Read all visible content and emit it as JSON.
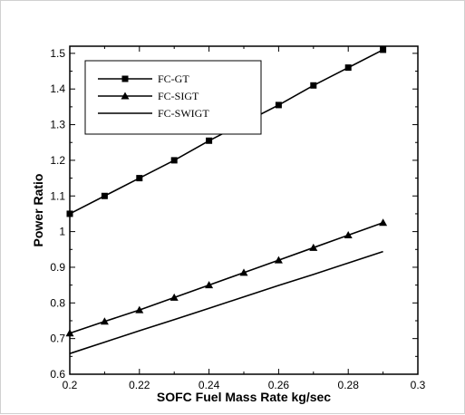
{
  "chart_data": {
    "type": "line",
    "xlabel": "SOFC Fuel Mass Rate kg/sec",
    "ylabel": "Power Ratio",
    "xlim": [
      0.2,
      0.3
    ],
    "ylim": [
      0.6,
      1.52
    ],
    "x_ticks": [
      "0.2",
      "0.22",
      "0.24",
      "0.26",
      "0.28",
      "0.3"
    ],
    "y_ticks": [
      "0.6",
      "0.7",
      "0.8",
      "0.9",
      "1",
      "1.1",
      "1.2",
      "1.3",
      "1.4",
      "1.5"
    ],
    "grid": false,
    "legend_position": "top-left",
    "x": [
      0.2,
      0.21,
      0.22,
      0.23,
      0.24,
      0.25,
      0.26,
      0.27,
      0.28,
      0.29
    ],
    "series": [
      {
        "name": "FC-GT",
        "marker": "square",
        "values": [
          1.05,
          1.1,
          1.15,
          1.2,
          1.255,
          1.305,
          1.355,
          1.41,
          1.46,
          1.51
        ]
      },
      {
        "name": "FC-SIGT",
        "marker": "triangle",
        "values": [
          0.715,
          0.748,
          0.78,
          0.815,
          0.85,
          0.885,
          0.92,
          0.955,
          0.99,
          1.025
        ]
      },
      {
        "name": "FC-SWIGT",
        "marker": "none",
        "values": [
          0.658,
          0.69,
          0.722,
          0.753,
          0.785,
          0.817,
          0.849,
          0.88,
          0.912,
          0.944
        ]
      }
    ],
    "color": "#000000"
  }
}
